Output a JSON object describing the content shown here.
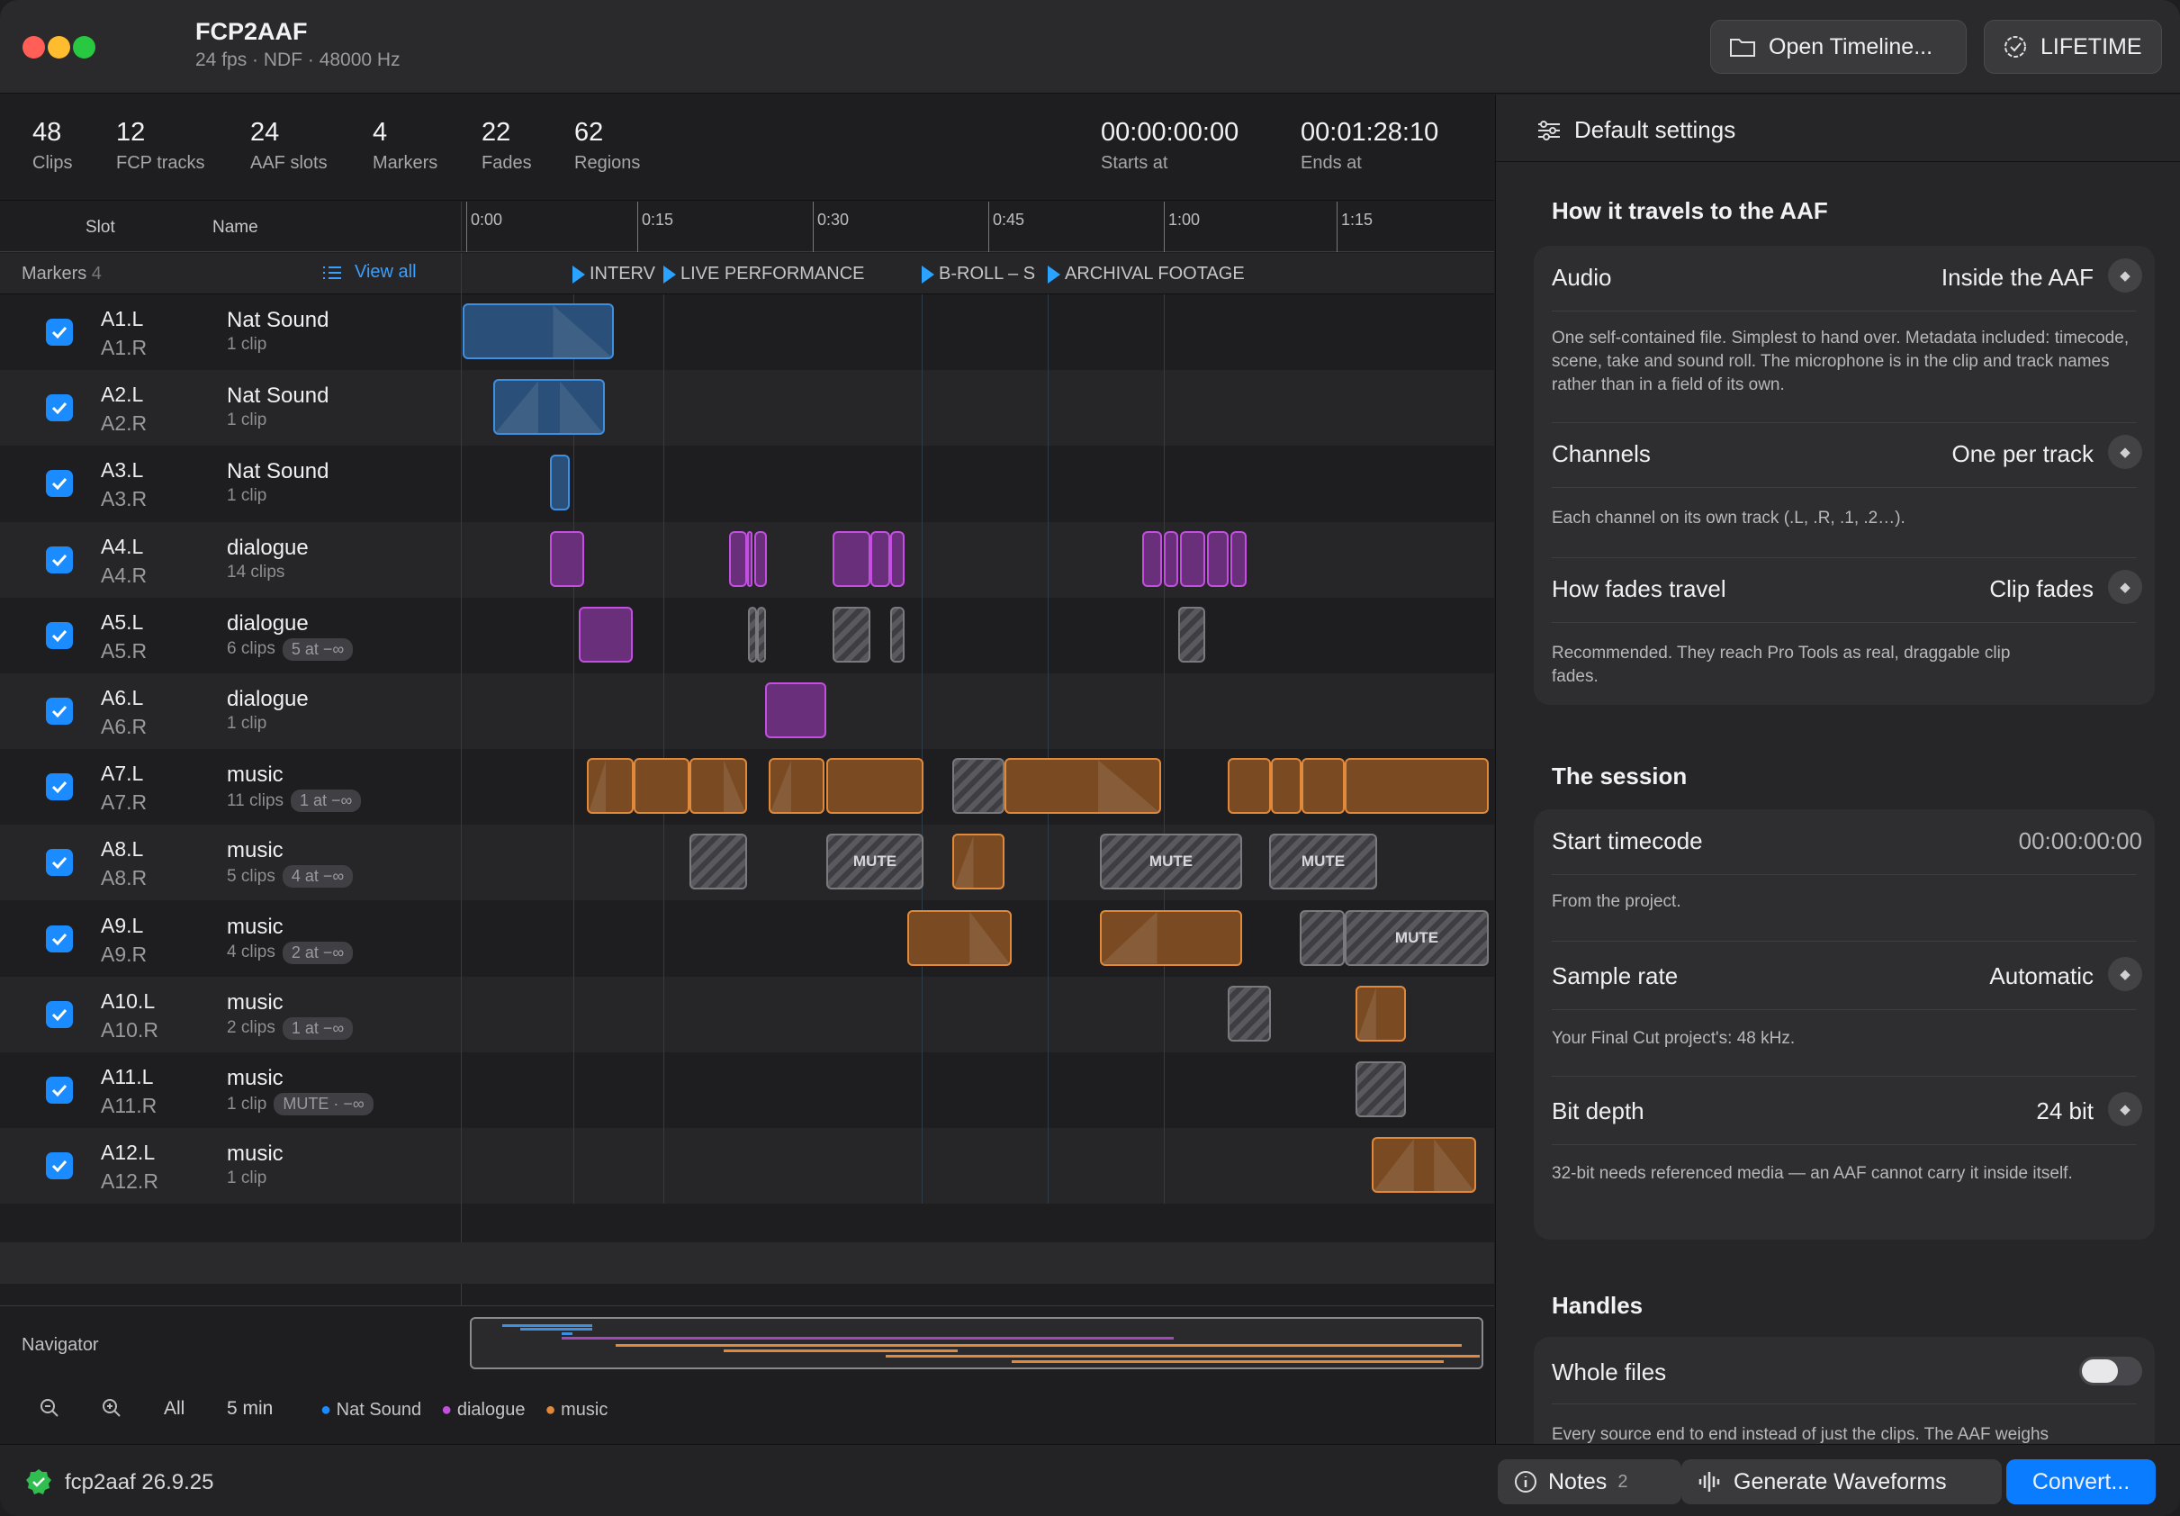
{
  "window": {
    "title": "FCP2AAF",
    "subtitle": "24 fps · NDF · 48000 Hz",
    "open_button": "Open Timeline...",
    "license_button": "LIFETIME"
  },
  "stats": [
    {
      "n": "48",
      "l": "Clips"
    },
    {
      "n": "12",
      "l": "FCP tracks"
    },
    {
      "n": "24",
      "l": "AAF slots"
    },
    {
      "n": "4",
      "l": "Markers"
    },
    {
      "n": "22",
      "l": "Fades"
    },
    {
      "n": "62",
      "l": "Regions"
    }
  ],
  "range": {
    "start": "00:00:00:00",
    "start_label": "Starts at",
    "end": "00:01:28:10",
    "end_label": "Ends at"
  },
  "columns": {
    "slot": "Slot",
    "name": "Name"
  },
  "ruler": [
    "0:00",
    "0:15",
    "0:30",
    "0:45",
    "1:00",
    "1:15"
  ],
  "markers": {
    "label": "Markers",
    "count": "4",
    "view_all": "View all",
    "items": [
      "INTERV",
      "LIVE PERFORMANCE",
      "B-ROLL – S",
      "ARCHIVAL FOOTAGE"
    ]
  },
  "tracks": [
    {
      "s1": "A1.L",
      "s2": "A1.R",
      "name": "Nat Sound",
      "clips": "1 clip",
      "pill": ""
    },
    {
      "s1": "A2.L",
      "s2": "A2.R",
      "name": "Nat Sound",
      "clips": "1 clip",
      "pill": ""
    },
    {
      "s1": "A3.L",
      "s2": "A3.R",
      "name": "Nat Sound",
      "clips": "1 clip",
      "pill": ""
    },
    {
      "s1": "A4.L",
      "s2": "A4.R",
      "name": "dialogue",
      "clips": "14 clips",
      "pill": ""
    },
    {
      "s1": "A5.L",
      "s2": "A5.R",
      "name": "dialogue",
      "clips": "6 clips",
      "pill": "5 at −∞"
    },
    {
      "s1": "A6.L",
      "s2": "A6.R",
      "name": "dialogue",
      "clips": "1 clip",
      "pill": ""
    },
    {
      "s1": "A7.L",
      "s2": "A7.R",
      "name": "music",
      "clips": "11 clips",
      "pill": "1 at −∞"
    },
    {
      "s1": "A8.L",
      "s2": "A8.R",
      "name": "music",
      "clips": "5 clips",
      "pill": "4 at −∞"
    },
    {
      "s1": "A9.L",
      "s2": "A9.R",
      "name": "music",
      "clips": "4 clips",
      "pill": "2 at −∞"
    },
    {
      "s1": "A10.L",
      "s2": "A10.R",
      "name": "music",
      "clips": "2 clips",
      "pill": "1 at −∞"
    },
    {
      "s1": "A11.L",
      "s2": "A11.R",
      "name": "music",
      "clips": "1 clip",
      "pill": "MUTE · −∞"
    },
    {
      "s1": "A12.L",
      "s2": "A12.R",
      "name": "music",
      "clips": "1 clip",
      "pill": ""
    }
  ],
  "mute_label": "MUTE",
  "navigator": {
    "label": "Navigator",
    "all": "All",
    "zoom": "5 min",
    "legend": [
      {
        "name": "Nat Sound",
        "color": "#1a8cff"
      },
      {
        "name": "dialogue",
        "color": "#c24fe0"
      },
      {
        "name": "music",
        "color": "#e0893a"
      }
    ]
  },
  "status": {
    "version": "fcp2aaf 26.9.25",
    "notes": "Notes",
    "notes_count": "2",
    "waveforms": "Generate Waveforms",
    "convert": "Convert..."
  },
  "settings": {
    "title": "Default settings",
    "travel_title": "How it travels to the AAF",
    "audio_label": "Audio",
    "audio_value": "Inside the AAF",
    "audio_desc": "One self-contained file. Simplest to hand over. Metadata included: timecode, scene, take and sound roll. The microphone is in the clip and track names rather than in a field of its own.",
    "channels_label": "Channels",
    "channels_value": "One per track",
    "channels_desc": "Each channel on its own track (.L, .R, .1, .2…).",
    "fades_label": "How fades travel",
    "fades_value": "Clip fades",
    "fades_desc": "Recommended. They reach Pro Tools as real, draggable clip fades.",
    "session_title": "The session",
    "tc_label": "Start timecode",
    "tc_value": "00:00:00:00",
    "tc_desc": "From the project.",
    "sr_label": "Sample rate",
    "sr_value": "Automatic",
    "sr_desc": "Your Final Cut project's: 48 kHz.",
    "bd_label": "Bit depth",
    "bd_value": "24 bit",
    "bd_desc": "32-bit needs referenced media — an AAF cannot carry it inside itself.",
    "handles_title": "Handles",
    "whole_label": "Whole files",
    "whole_desc": "Every source end to end instead of just the clips. The AAF weighs"
  },
  "colors": {
    "accent": "#1a8cff",
    "nat": "#3f8fe0",
    "dialogue": "#c24fe0",
    "music": "#e0893a"
  }
}
